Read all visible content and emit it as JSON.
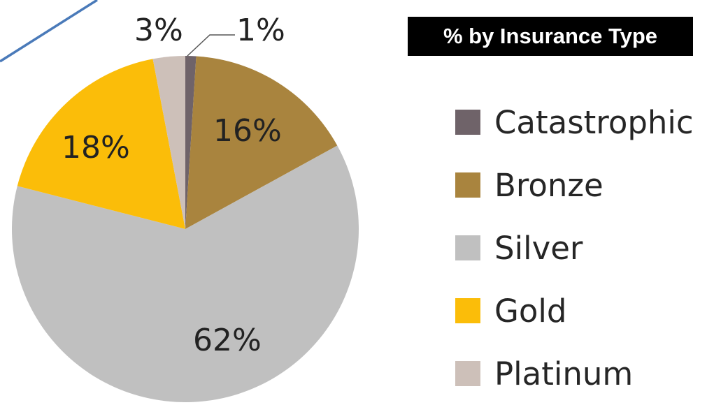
{
  "chart_data": {
    "type": "pie",
    "title": "% by Insurance Type",
    "slices": [
      {
        "name": "Catastrophic",
        "value": 1,
        "label": "1%",
        "color": "#6f6369"
      },
      {
        "name": "Bronze",
        "value": 16,
        "label": "16%",
        "color": "#a9843e"
      },
      {
        "name": "Silver",
        "value": 62,
        "label": "62%",
        "color": "#c0c0c0"
      },
      {
        "name": "Gold",
        "value": 18,
        "label": "18%",
        "color": "#fbbd09"
      },
      {
        "name": "Platinum",
        "value": 3,
        "label": "3%",
        "color": "#cdc0b9"
      }
    ],
    "legend_position": "right",
    "decoration_color": "#4a7ab9"
  }
}
